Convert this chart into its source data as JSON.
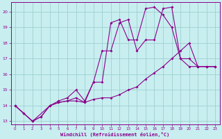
{
  "xlabel": "Windchill (Refroidissement éolien,°C)",
  "bg_color": "#c8eef0",
  "grid_color": "#9dcfcf",
  "line_color": "#8b008b",
  "xlim": [
    -0.5,
    23.5
  ],
  "ylim": [
    12.8,
    20.6
  ],
  "xticks": [
    0,
    1,
    2,
    3,
    4,
    5,
    6,
    7,
    8,
    9,
    10,
    11,
    12,
    13,
    14,
    15,
    16,
    17,
    18,
    19,
    20,
    21,
    22,
    23
  ],
  "yticks": [
    13,
    14,
    15,
    16,
    17,
    18,
    19,
    20
  ],
  "series1": [
    [
      0,
      14.0
    ],
    [
      1,
      13.5
    ],
    [
      2,
      13.0
    ],
    [
      3,
      13.3
    ],
    [
      4,
      14.0
    ],
    [
      5,
      14.2
    ],
    [
      6,
      14.3
    ],
    [
      7,
      14.3
    ],
    [
      8,
      14.2
    ],
    [
      9,
      14.4
    ],
    [
      10,
      14.5
    ],
    [
      11,
      14.5
    ],
    [
      12,
      14.7
    ],
    [
      13,
      15.0
    ],
    [
      14,
      15.2
    ],
    [
      15,
      15.7
    ],
    [
      16,
      16.1
    ],
    [
      17,
      16.5
    ],
    [
      18,
      17.0
    ],
    [
      19,
      17.5
    ],
    [
      20,
      18.0
    ],
    [
      21,
      16.5
    ],
    [
      22,
      16.5
    ],
    [
      23,
      16.5
    ]
  ],
  "series2": [
    [
      0,
      14.0
    ],
    [
      2,
      13.0
    ],
    [
      3,
      13.3
    ],
    [
      4,
      14.0
    ],
    [
      5,
      14.2
    ],
    [
      6,
      14.3
    ],
    [
      7,
      14.5
    ],
    [
      8,
      14.2
    ],
    [
      9,
      15.5
    ],
    [
      10,
      17.5
    ],
    [
      11,
      17.5
    ],
    [
      12,
      19.3
    ],
    [
      13,
      19.5
    ],
    [
      14,
      17.5
    ],
    [
      15,
      18.2
    ],
    [
      16,
      18.2
    ],
    [
      17,
      20.2
    ],
    [
      18,
      20.3
    ],
    [
      19,
      17.0
    ],
    [
      20,
      17.0
    ],
    [
      21,
      16.5
    ],
    [
      22,
      16.5
    ],
    [
      23,
      16.5
    ]
  ],
  "series3": [
    [
      0,
      14.0
    ],
    [
      1,
      13.5
    ],
    [
      2,
      13.0
    ],
    [
      4,
      14.0
    ],
    [
      5,
      14.3
    ],
    [
      6,
      14.5
    ],
    [
      7,
      15.0
    ],
    [
      8,
      14.3
    ],
    [
      9,
      15.5
    ],
    [
      10,
      15.5
    ],
    [
      11,
      19.3
    ],
    [
      12,
      19.5
    ],
    [
      13,
      18.2
    ],
    [
      14,
      18.2
    ],
    [
      15,
      20.2
    ],
    [
      16,
      20.3
    ],
    [
      17,
      19.8
    ],
    [
      18,
      19.0
    ],
    [
      19,
      17.0
    ],
    [
      20,
      16.5
    ],
    [
      21,
      16.5
    ],
    [
      22,
      16.5
    ],
    [
      23,
      16.5
    ]
  ]
}
